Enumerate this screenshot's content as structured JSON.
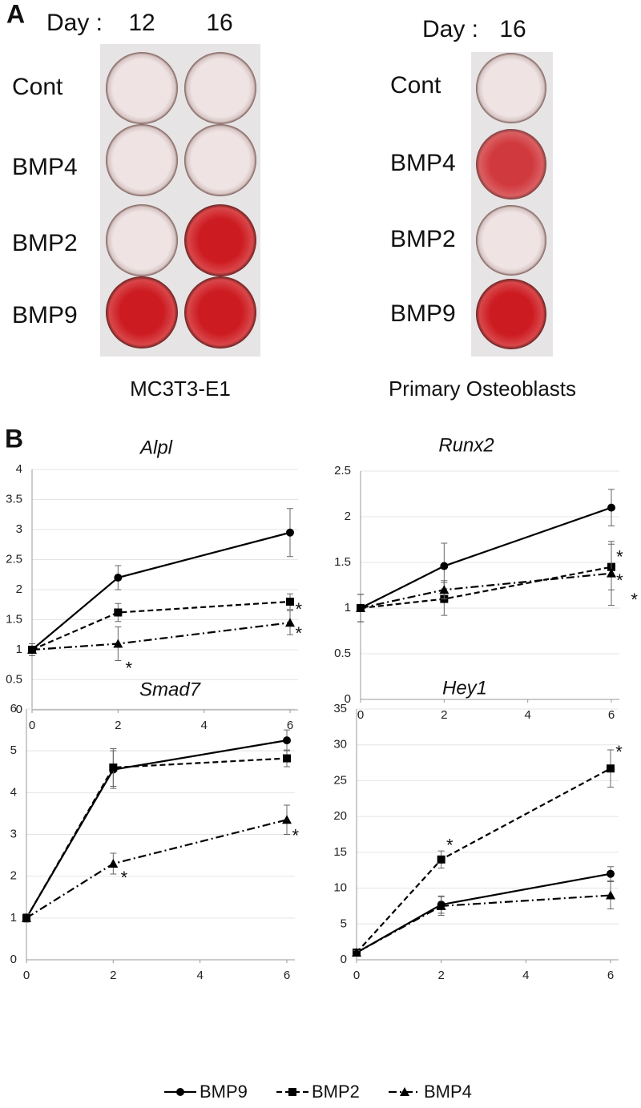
{
  "panel_a": {
    "label": "A",
    "left": {
      "day_label": "Day :",
      "days": [
        "12",
        "16"
      ],
      "rows": [
        "Cont",
        "BMP4",
        "BMP2",
        "BMP9"
      ],
      "caption": "MC3T3-E1"
    },
    "right": {
      "day_label": "Day :",
      "days": [
        "16"
      ],
      "rows": [
        "Cont",
        "BMP4",
        "BMP2",
        "BMP9"
      ],
      "caption": "Primary Osteoblasts"
    }
  },
  "panel_b": {
    "label": "B"
  },
  "chart_data": [
    {
      "type": "line",
      "title": "Alpl",
      "x": [
        0,
        2,
        6
      ],
      "xlim": [
        0,
        6
      ],
      "xticks": [
        0,
        2,
        4,
        6
      ],
      "ylim": [
        0,
        4
      ],
      "yticks": [
        0,
        0.5,
        1,
        1.5,
        2,
        2.5,
        3,
        3.5,
        4
      ],
      "grid": true,
      "series": [
        {
          "name": "BMP9",
          "color": "#000000",
          "line_style": "solid",
          "marker": "circle",
          "values": [
            1,
            2.2,
            2.95
          ],
          "errors": [
            0.1,
            0.2,
            0.4
          ]
        },
        {
          "name": "BMP2",
          "color": "#000000",
          "line_style": "dashed",
          "marker": "square",
          "values": [
            1,
            1.62,
            1.8
          ],
          "errors": [
            0.1,
            0.15,
            0.13
          ]
        },
        {
          "name": "BMP4",
          "color": "#000000",
          "line_style": "dashdot",
          "marker": "triangle",
          "values": [
            1,
            1.1,
            1.45
          ],
          "errors": [
            0.1,
            0.28,
            0.2
          ]
        }
      ],
      "annotations": [
        {
          "text": "*",
          "x": 2.25,
          "y": 0.75
        },
        {
          "text": "*",
          "x": 6.2,
          "y": 1.73
        },
        {
          "text": "*",
          "x": 6.2,
          "y": 1.33
        }
      ]
    },
    {
      "type": "line",
      "title": "Runx2",
      "x": [
        0,
        2,
        6
      ],
      "xlim": [
        0,
        6
      ],
      "xticks": [
        0,
        2,
        4,
        6
      ],
      "ylim": [
        0,
        2.5
      ],
      "yticks": [
        0,
        0.5,
        1,
        1.5,
        2,
        2.5
      ],
      "grid": true,
      "series": [
        {
          "name": "BMP9",
          "color": "#000000",
          "line_style": "solid",
          "marker": "circle",
          "values": [
            1,
            1.46,
            2.1
          ],
          "errors": [
            0.15,
            0.25,
            0.2
          ]
        },
        {
          "name": "BMP2",
          "color": "#000000",
          "line_style": "dashed",
          "marker": "square",
          "values": [
            1,
            1.1,
            1.45
          ],
          "errors": [
            0.15,
            0.18,
            0.25
          ]
        },
        {
          "name": "BMP4",
          "color": "#000000",
          "line_style": "dashdot",
          "marker": "triangle",
          "values": [
            1,
            1.2,
            1.38
          ],
          "errors": [
            0.15,
            0.1,
            0.35
          ]
        }
      ],
      "annotations": [
        {
          "text": "*",
          "x": 6.2,
          "y": 1.6
        },
        {
          "text": "*",
          "x": 6.2,
          "y": 1.34
        },
        {
          "text": "*",
          "x": 6.55,
          "y": 1.13
        }
      ]
    },
    {
      "type": "line",
      "title": "Smad7",
      "x": [
        0,
        2,
        6
      ],
      "xlim": [
        0,
        6
      ],
      "xticks": [
        0,
        2,
        4,
        6
      ],
      "ylim": [
        0,
        6
      ],
      "yticks": [
        0,
        1,
        2,
        3,
        4,
        5,
        6
      ],
      "grid": true,
      "series": [
        {
          "name": "BMP9",
          "color": "#000000",
          "line_style": "solid",
          "marker": "circle",
          "values": [
            1,
            4.55,
            5.25
          ],
          "errors": [
            0.1,
            0.45,
            0.25
          ]
        },
        {
          "name": "BMP2",
          "color": "#000000",
          "line_style": "dashed",
          "marker": "square",
          "values": [
            1,
            4.6,
            4.82
          ],
          "errors": [
            0.1,
            0.45,
            0.2
          ]
        },
        {
          "name": "BMP4",
          "color": "#000000",
          "line_style": "dashdot",
          "marker": "triangle",
          "values": [
            1,
            2.3,
            3.35
          ],
          "errors": [
            0.1,
            0.25,
            0.35
          ]
        }
      ],
      "annotations": [
        {
          "text": "*",
          "x": 2.25,
          "y": 2.05
        },
        {
          "text": "*",
          "x": 6.2,
          "y": 3.05
        }
      ]
    },
    {
      "type": "line",
      "title": "Hey1",
      "x": [
        0,
        2,
        6
      ],
      "xlim": [
        0,
        6
      ],
      "xticks": [
        0,
        2,
        4,
        6
      ],
      "ylim": [
        0,
        35
      ],
      "yticks": [
        0,
        5,
        10,
        15,
        20,
        25,
        30,
        35
      ],
      "grid": true,
      "series": [
        {
          "name": "BMP9",
          "color": "#000000",
          "line_style": "solid",
          "marker": "circle",
          "values": [
            1,
            7.7,
            12
          ],
          "errors": [
            0.3,
            1.2,
            1
          ]
        },
        {
          "name": "BMP2",
          "color": "#000000",
          "line_style": "dashed",
          "marker": "square",
          "values": [
            1,
            14,
            26.7
          ],
          "errors": [
            0.3,
            1.2,
            2.6
          ]
        },
        {
          "name": "BMP4",
          "color": "#000000",
          "line_style": "dashdot",
          "marker": "triangle",
          "values": [
            1,
            7.5,
            9
          ],
          "errors": [
            0.3,
            1.3,
            1.9
          ]
        }
      ],
      "annotations": [
        {
          "text": "*",
          "x": 2.2,
          "y": 16.5
        },
        {
          "text": "*",
          "x": 6.2,
          "y": 29.5
        }
      ]
    }
  ]
}
